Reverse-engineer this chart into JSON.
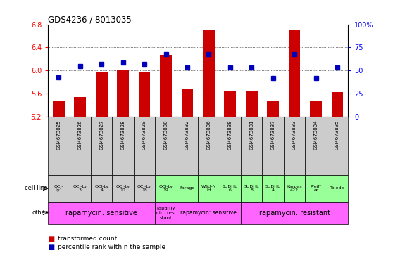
{
  "title": "GDS4236 / 8013035",
  "samples": [
    "GSM673825",
    "GSM673826",
    "GSM673827",
    "GSM673828",
    "GSM673829",
    "GSM673830",
    "GSM673832",
    "GSM673836",
    "GSM673838",
    "GSM673831",
    "GSM673837",
    "GSM673833",
    "GSM673834",
    "GSM673835"
  ],
  "red_values": [
    5.48,
    5.54,
    5.98,
    6.0,
    5.97,
    6.27,
    5.68,
    6.71,
    5.65,
    5.64,
    5.47,
    6.71,
    5.47,
    5.63
  ],
  "blue_values": [
    5.88,
    6.08,
    6.12,
    6.14,
    6.11,
    6.28,
    6.05,
    6.28,
    6.05,
    6.05,
    5.87,
    6.28,
    5.87,
    6.05
  ],
  "ylim": [
    5.2,
    6.8
  ],
  "yticks": [
    5.2,
    5.6,
    6.0,
    6.4,
    6.8
  ],
  "y2lim": [
    0,
    100
  ],
  "y2ticks": [
    0,
    25,
    50,
    75,
    100
  ],
  "cell_lines": [
    "OCI-\nLy1",
    "OCI-Ly\n3",
    "OCI-Ly\n4",
    "OCI-Ly\n10",
    "OCI-Ly\n18",
    "OCI-Ly\n19",
    "Farage",
    "WSU-N\nIH",
    "SUDHL\n6",
    "SUDHL\n8",
    "SUDHL\n4",
    "Karpas\n422",
    "Pfeiff\ner",
    "Toledo"
  ],
  "cell_bg_colors": [
    "#cccccc",
    "#cccccc",
    "#cccccc",
    "#cccccc",
    "#cccccc",
    "#99ff99",
    "#99ff99",
    "#99ff99",
    "#99ff99",
    "#99ff99",
    "#99ff99",
    "#99ff99",
    "#99ff99",
    "#99ff99"
  ],
  "other_segments": [
    {
      "text": "rapamycin: sensitive",
      "start": 0,
      "end": 5,
      "color": "#ff66ff",
      "fontsize": 7
    },
    {
      "text": "rapamy\ncin: resi\nstant",
      "start": 5,
      "end": 6,
      "color": "#ff66ff",
      "fontsize": 5
    },
    {
      "text": "rapamycin: sensitive",
      "start": 6,
      "end": 9,
      "color": "#ff66ff",
      "fontsize": 5.5
    },
    {
      "text": "rapamycin: resistant",
      "start": 9,
      "end": 14,
      "color": "#ff66ff",
      "fontsize": 7
    }
  ],
  "bar_color": "#cc0000",
  "dot_color": "#0000bb",
  "legend_red": "transformed count",
  "legend_blue": "percentile rank within the sample"
}
